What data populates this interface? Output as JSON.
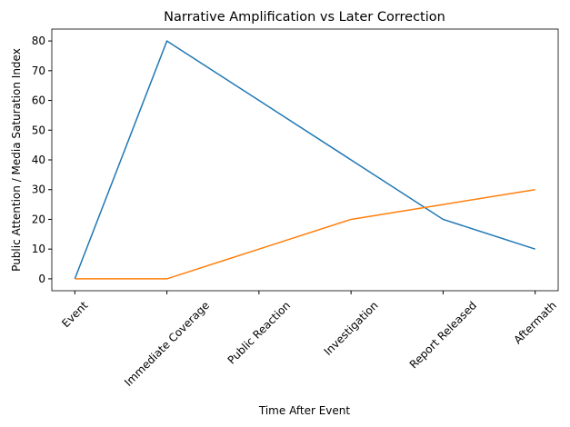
{
  "chart_data": {
    "type": "line",
    "title": "Narrative Amplification vs Later Correction",
    "x_label": "Time After Event",
    "y_label": "Public Attention / Media Saturation Index",
    "categories": [
      "Event",
      "Immediate Coverage",
      "Public Reaction",
      "Investigation",
      "Report Released",
      "Aftermath"
    ],
    "series": [
      {
        "color": "#1f77b4",
        "values": [
          0,
          80,
          60,
          40,
          20,
          10
        ]
      },
      {
        "color": "#ff7f0e",
        "values": [
          0,
          0,
          10,
          20,
          25,
          30
        ]
      }
    ],
    "ylim": [
      -4,
      84
    ],
    "yticks": [
      0,
      10,
      20,
      30,
      40,
      50,
      60,
      70,
      80
    ]
  }
}
